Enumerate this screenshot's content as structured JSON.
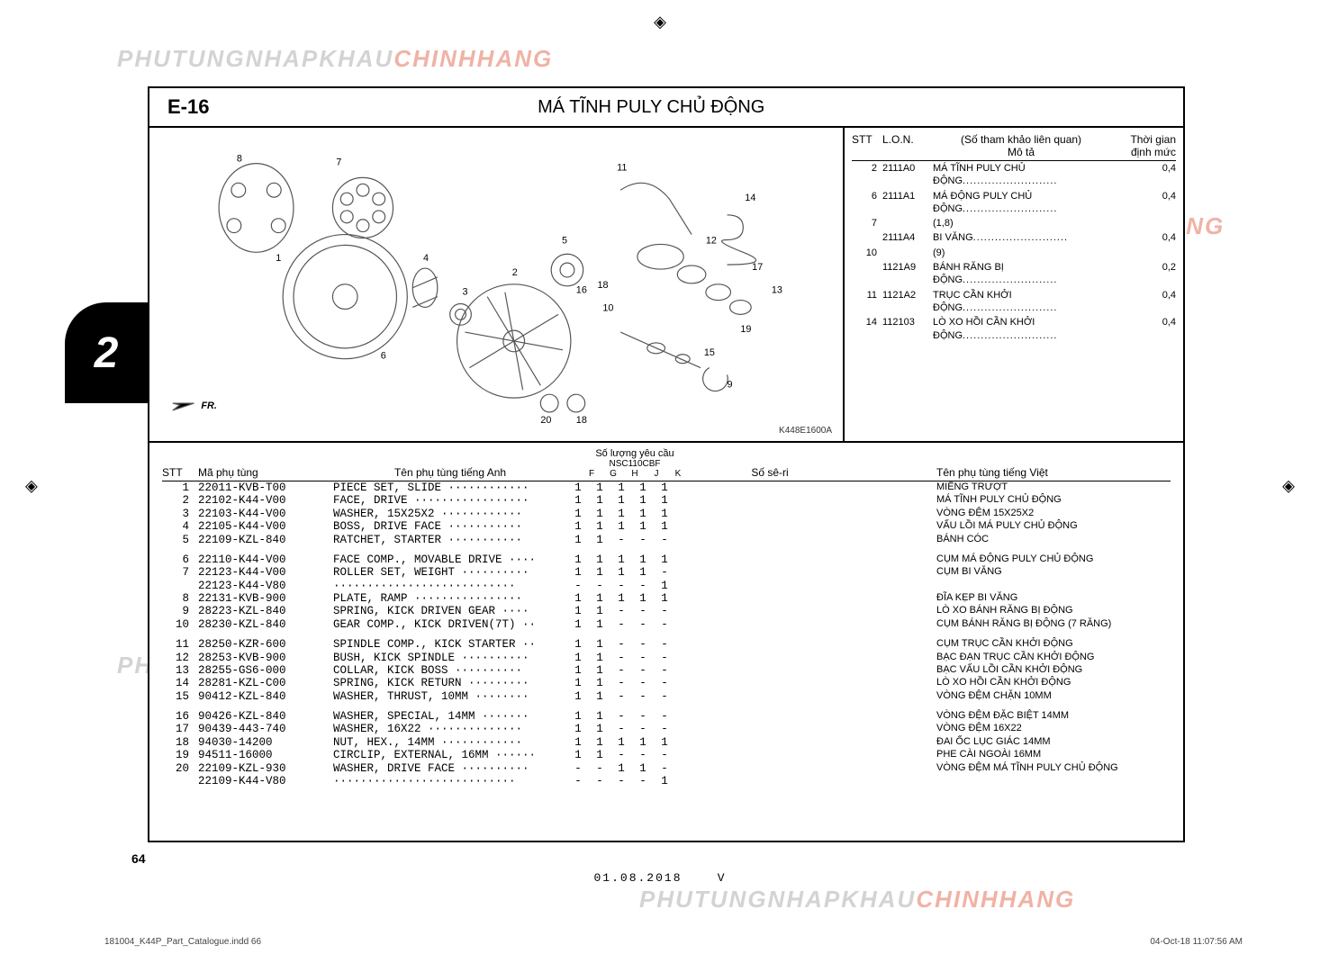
{
  "watermark": {
    "gray": "PHUTUNGNHAPKHAU",
    "red": "CHINHHANG"
  },
  "section": {
    "code": "E-16",
    "title": "MÁ TĨNH PULY CHỦ ĐỘNG"
  },
  "diagramCode": "K448E1600A",
  "refHeader": {
    "stt": "STT",
    "lon": "L.O.N.",
    "descTop": "(Số tham khảo liên quan)",
    "descBot": "Mô tả",
    "timeTop": "Thời gian",
    "timeBot": "định mức"
  },
  "refRows": [
    {
      "stt": "2",
      "lon": "2111A0",
      "desc": "MÁ TĨNH PULY CHỦ ĐỘNG",
      "time": "0,4"
    },
    {
      "stt": "6",
      "lon": "2111A1",
      "desc": "MÁ ĐỘNG PULY CHỦ ĐỘNG",
      "time": "0,4"
    },
    {
      "stt": "7",
      "lon": "",
      "desc": "(1,8)",
      "time": ""
    },
    {
      "stt": "",
      "lon": "2111A4",
      "desc": "BI VĂNG",
      "time": "0,4"
    },
    {
      "stt": "10",
      "lon": "",
      "desc": "(9)",
      "time": ""
    },
    {
      "stt": "",
      "lon": "1121A9",
      "desc": "BÁNH RĂNG BỊ ĐỘNG",
      "time": "0,2"
    },
    {
      "stt": "11",
      "lon": "1121A2",
      "desc": "TRỤC CẦN KHỞI ĐỘNG",
      "time": "0,4"
    },
    {
      "stt": "14",
      "lon": "112103",
      "desc": "LÒ XO HỒI CẦN KHỞI ĐỘNG",
      "time": "0,4"
    }
  ],
  "tableHeader": {
    "stt": "STT",
    "code": "Mã phụ tùng",
    "en": "Tên phụ tùng tiếng Anh",
    "qtyTop": "Số lượng yêu cầu",
    "qtyMid": "NSC110CBF",
    "qtyCols": [
      "F",
      "G",
      "H",
      "J",
      "K"
    ],
    "serial": "Số sê-ri",
    "vn": "Tên phụ tùng tiếng Việt"
  },
  "parts": [
    [
      {
        "stt": "1",
        "code": "22011-KVB-T00",
        "en": "PIECE SET, SLIDE ············",
        "q": [
          "1",
          "1",
          "1",
          "1",
          "1"
        ],
        "vn": "MIẾNG TRƯỢT"
      },
      {
        "stt": "2",
        "code": "22102-K44-V00",
        "en": "FACE, DRIVE ·················",
        "q": [
          "1",
          "1",
          "1",
          "1",
          "1"
        ],
        "vn": "MÁ TĨNH PULY CHỦ ĐỘNG"
      },
      {
        "stt": "3",
        "code": "22103-K44-V00",
        "en": "WASHER, 15X25X2 ············",
        "q": [
          "1",
          "1",
          "1",
          "1",
          "1"
        ],
        "vn": "VÒNG ĐỆM 15X25X2"
      },
      {
        "stt": "4",
        "code": "22105-K44-V00",
        "en": "BOSS, DRIVE FACE ···········",
        "q": [
          "1",
          "1",
          "1",
          "1",
          "1"
        ],
        "vn": "VẤU LỒI MÁ PULY CHỦ ĐỘNG"
      },
      {
        "stt": "5",
        "code": "22109-KZL-840",
        "en": "RATCHET, STARTER ···········",
        "q": [
          "1",
          "1",
          "-",
          "-",
          "-"
        ],
        "vn": "BÁNH CÓC"
      }
    ],
    [
      {
        "stt": "6",
        "code": "22110-K44-V00",
        "en": "FACE COMP., MOVABLE DRIVE ····",
        "q": [
          "1",
          "1",
          "1",
          "1",
          "1"
        ],
        "vn": "CỤM MÁ ĐỘNG PULY CHỦ ĐỘNG"
      },
      {
        "stt": "7",
        "code": "22123-K44-V00",
        "en": "ROLLER SET, WEIGHT ··········",
        "q": [
          "1",
          "1",
          "1",
          "1",
          "-"
        ],
        "vn": "CỤM BI VĂNG"
      },
      {
        "stt": "",
        "code": "22123-K44-V80",
        "en": "···························",
        "q": [
          "-",
          "-",
          "-",
          "-",
          "1"
        ],
        "vn": ""
      },
      {
        "stt": "8",
        "code": "22131-KVB-900",
        "en": "PLATE, RAMP ················",
        "q": [
          "1",
          "1",
          "1",
          "1",
          "1"
        ],
        "vn": "ĐĨA KẸP BI VĂNG"
      },
      {
        "stt": "9",
        "code": "28223-KZL-840",
        "en": "SPRING, KICK DRIVEN GEAR ····",
        "q": [
          "1",
          "1",
          "-",
          "-",
          "-"
        ],
        "vn": "LÒ XO BÁNH RĂNG BỊ ĐỘNG"
      },
      {
        "stt": "10",
        "code": "28230-KZL-840",
        "en": "GEAR COMP., KICK DRIVEN(7T) ··",
        "q": [
          "1",
          "1",
          "-",
          "-",
          "-"
        ],
        "vn": "CỤM BÁNH RĂNG BỊ ĐỘNG (7 RĂNG)"
      }
    ],
    [
      {
        "stt": "11",
        "code": "28250-KZR-600",
        "en": "SPINDLE COMP., KICK STARTER ··",
        "q": [
          "1",
          "1",
          "-",
          "-",
          "-"
        ],
        "vn": "CỤM TRỤC CẦN KHỞI ĐỘNG"
      },
      {
        "stt": "12",
        "code": "28253-KVB-900",
        "en": "BUSH, KICK SPINDLE ··········",
        "q": [
          "1",
          "1",
          "-",
          "-",
          "-"
        ],
        "vn": "BẠC ĐẠN TRỤC CẦN KHỞI ĐỘNG"
      },
      {
        "stt": "13",
        "code": "28255-GS6-000",
        "en": "COLLAR, KICK BOSS ··········",
        "q": [
          "1",
          "1",
          "-",
          "-",
          "-"
        ],
        "vn": "BẠC VẤU LỒI CẦN KHỞI ĐỘNG"
      },
      {
        "stt": "14",
        "code": "28281-KZL-C00",
        "en": "SPRING, KICK RETURN ·········",
        "q": [
          "1",
          "1",
          "-",
          "-",
          "-"
        ],
        "vn": "LÒ XO HỒI CẦN KHỞI ĐỘNG"
      },
      {
        "stt": "15",
        "code": "90412-KZL-840",
        "en": "WASHER, THRUST, 10MM ········",
        "q": [
          "1",
          "1",
          "-",
          "-",
          "-"
        ],
        "vn": "VÒNG ĐỆM CHẶN 10MM"
      }
    ],
    [
      {
        "stt": "16",
        "code": "90426-KZL-840",
        "en": "WASHER, SPECIAL, 14MM ·······",
        "q": [
          "1",
          "1",
          "-",
          "-",
          "-"
        ],
        "vn": "VÒNG ĐỆM ĐẶC BIỆT 14MM"
      },
      {
        "stt": "17",
        "code": "90439-443-740",
        "en": "WASHER, 16X22 ··············",
        "q": [
          "1",
          "1",
          "-",
          "-",
          "-"
        ],
        "vn": "VÒNG ĐỆM 16X22"
      },
      {
        "stt": "18",
        "code": "94030-14200",
        "en": "NUT, HEX., 14MM ············",
        "q": [
          "1",
          "1",
          "1",
          "1",
          "1"
        ],
        "vn": "ĐAI ỐC LỤC GIÁC 14MM"
      },
      {
        "stt": "19",
        "code": "94511-16000",
        "en": "CIRCLIP, EXTERNAL, 16MM ······",
        "q": [
          "1",
          "1",
          "-",
          "-",
          "-"
        ],
        "vn": "PHE CÀI NGOÀI 16MM"
      },
      {
        "stt": "20",
        "code": "22109-KZL-930",
        "en": "WASHER, DRIVE FACE ··········",
        "q": [
          "-",
          "-",
          "1",
          "1",
          "-"
        ],
        "vn": "VÒNG ĐỆM MÁ TĨNH PULY CHỦ ĐỘNG"
      },
      {
        "stt": "",
        "code": "22109-K44-V80",
        "en": "···························",
        "q": [
          "-",
          "-",
          "-",
          "-",
          "1"
        ],
        "vn": ""
      }
    ]
  ],
  "pageNumber": "64",
  "tabNumber": "2",
  "footerDate": "01.08.2018    V",
  "indd": "181004_K44P_Part_Catalogue.indd   66",
  "printTs": "04-Oct-18   11:07:56 AM",
  "diagramCallouts": [
    "1",
    "2",
    "3",
    "4",
    "5",
    "6",
    "7",
    "8",
    "9",
    "10",
    "11",
    "12",
    "13",
    "14",
    "15",
    "16",
    "17",
    "18",
    "19",
    "20"
  ],
  "frLabel": "FR."
}
